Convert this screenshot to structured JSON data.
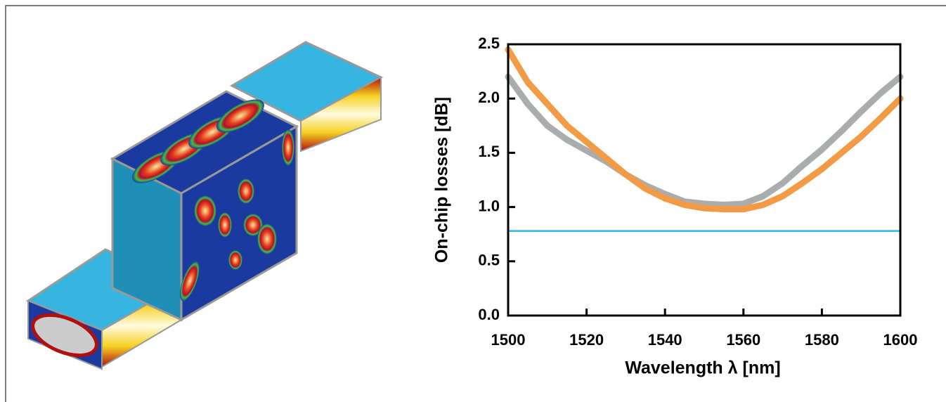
{
  "chart_data": {
    "type": "line",
    "xlabel": "Wavelength λ [nm]",
    "ylabel": "On-chip losses [dB]",
    "x": [
      1500,
      1505,
      1510,
      1515,
      1520,
      1525,
      1530,
      1535,
      1540,
      1545,
      1550,
      1555,
      1560,
      1565,
      1570,
      1575,
      1580,
      1585,
      1590,
      1595,
      1600
    ],
    "series": [
      {
        "color": "#a9adad",
        "values": [
          2.2,
          1.95,
          1.75,
          1.62,
          1.52,
          1.42,
          1.3,
          1.2,
          1.12,
          1.05,
          1.03,
          1.02,
          1.03,
          1.1,
          1.22,
          1.38,
          1.53,
          1.7,
          1.88,
          2.05,
          2.2
        ]
      },
      {
        "color": "#f39a45",
        "values": [
          2.45,
          2.15,
          1.95,
          1.75,
          1.6,
          1.45,
          1.3,
          1.17,
          1.08,
          1.02,
          0.99,
          0.98,
          0.98,
          1.02,
          1.1,
          1.22,
          1.35,
          1.5,
          1.65,
          1.82,
          2.0
        ]
      },
      {
        "color": "#29b6e8",
        "values": [
          0.78,
          0.78,
          0.78,
          0.78,
          0.78,
          0.78,
          0.78,
          0.78,
          0.78,
          0.78,
          0.78,
          0.78,
          0.78,
          0.78,
          0.78,
          0.78,
          0.78,
          0.78,
          0.78,
          0.78,
          0.78
        ]
      }
    ],
    "xlim": [
      1500,
      1600
    ],
    "xticks": [
      1500,
      1520,
      1540,
      1560,
      1580,
      1600
    ],
    "ylim": [
      0,
      2.5
    ],
    "yticks": [
      {
        "value": 0,
        "label": "0.0"
      },
      {
        "value": 0.5,
        "label": "0.5"
      },
      {
        "value": 1,
        "label": "1.0"
      },
      {
        "value": 1.5,
        "label": "1.5"
      },
      {
        "value": 2,
        "label": "2.0"
      },
      {
        "value": 2.5,
        "label": "2.5"
      }
    ]
  }
}
